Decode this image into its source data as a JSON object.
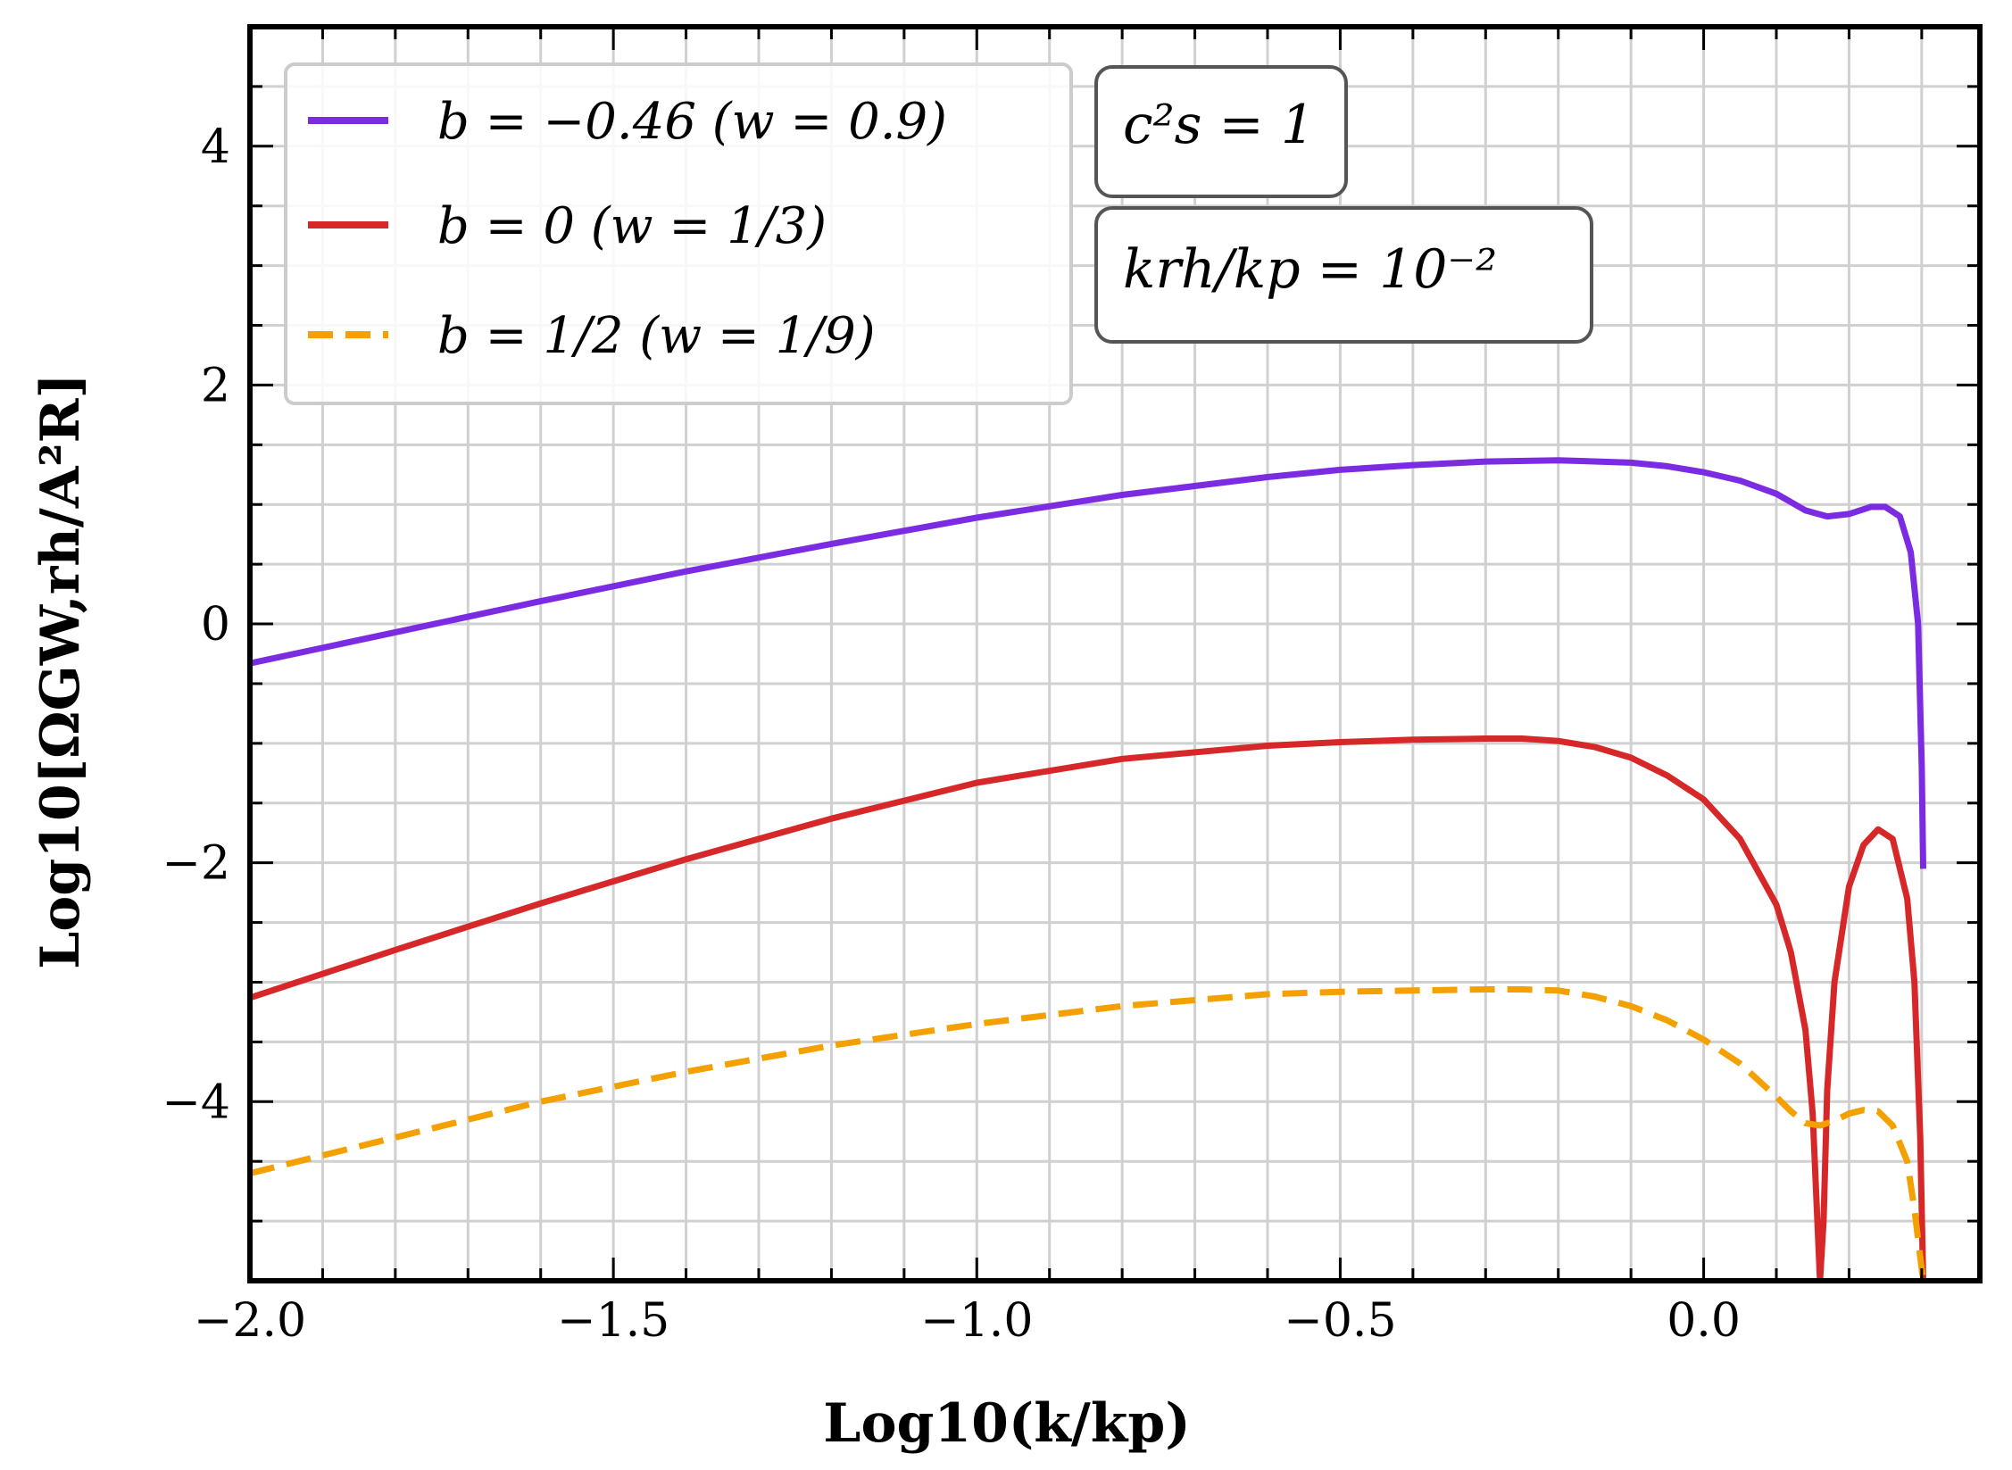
{
  "chart_data": {
    "type": "line",
    "xlabel": "Log10(k/kp)",
    "ylabel": "Log10[ΩGW,rh/A²R]",
    "xlim": [
      -2.0,
      0.38
    ],
    "ylim": [
      -5.5,
      5.0
    ],
    "x_ticks": [
      -2.0,
      -1.5,
      -1.0,
      -0.5,
      0.0
    ],
    "x_tick_labels": [
      "−2.0",
      "−1.5",
      "−1.0",
      "−0.5",
      "0.0"
    ],
    "y_ticks": [
      -4,
      -2,
      0,
      2,
      4
    ],
    "y_tick_labels": [
      "−4",
      "−2",
      "0",
      "2",
      "4"
    ],
    "grid": true,
    "legend_position": "upper-left",
    "annotations": [
      "c²s = 1",
      "krh/kp = 10⁻²"
    ],
    "series": [
      {
        "name": "b = −0.46 (w = 0.9)",
        "color": "#7b2be2",
        "dash": "solid",
        "x": [
          -2.0,
          -1.8,
          -1.6,
          -1.4,
          -1.2,
          -1.0,
          -0.8,
          -0.6,
          -0.5,
          -0.4,
          -0.3,
          -0.2,
          -0.1,
          -0.05,
          0.0,
          0.05,
          0.1,
          0.14,
          0.17,
          0.2,
          0.23,
          0.25,
          0.27,
          0.285,
          0.295,
          0.3,
          0.302
        ],
        "y": [
          -0.33,
          -0.07,
          0.19,
          0.44,
          0.67,
          0.89,
          1.08,
          1.23,
          1.29,
          1.33,
          1.36,
          1.37,
          1.35,
          1.32,
          1.27,
          1.2,
          1.09,
          0.95,
          0.9,
          0.92,
          0.98,
          0.98,
          0.9,
          0.6,
          0.0,
          -1.2,
          -2.05
        ]
      },
      {
        "name": "b = 0 (w = 1/3)",
        "color": "#d62828",
        "dash": "solid",
        "x": [
          -2.0,
          -1.8,
          -1.6,
          -1.4,
          -1.2,
          -1.0,
          -0.8,
          -0.6,
          -0.5,
          -0.4,
          -0.3,
          -0.25,
          -0.2,
          -0.15,
          -0.1,
          -0.05,
          0.0,
          0.05,
          0.1,
          0.12,
          0.14,
          0.15,
          0.16,
          0.165,
          0.17,
          0.18,
          0.2,
          0.22,
          0.24,
          0.26,
          0.28,
          0.29,
          0.298,
          0.302
        ],
        "y": [
          -3.13,
          -2.73,
          -2.34,
          -1.97,
          -1.63,
          -1.33,
          -1.13,
          -1.02,
          -0.99,
          -0.97,
          -0.96,
          -0.96,
          -0.98,
          -1.03,
          -1.12,
          -1.27,
          -1.47,
          -1.8,
          -2.35,
          -2.75,
          -3.4,
          -4.1,
          -5.5,
          -5.0,
          -3.9,
          -3.0,
          -2.2,
          -1.85,
          -1.72,
          -1.8,
          -2.3,
          -3.0,
          -4.3,
          -5.5
        ]
      },
      {
        "name": "b = 1/2 (w = 1/9)",
        "color": "#f4a000",
        "dash": "dashed",
        "x": [
          -2.0,
          -1.8,
          -1.6,
          -1.4,
          -1.2,
          -1.0,
          -0.8,
          -0.6,
          -0.5,
          -0.4,
          -0.3,
          -0.25,
          -0.2,
          -0.15,
          -0.1,
          -0.05,
          0.0,
          0.05,
          0.1,
          0.12,
          0.14,
          0.16,
          0.18,
          0.2,
          0.22,
          0.24,
          0.26,
          0.28,
          0.29,
          0.298,
          0.302
        ],
        "y": [
          -4.6,
          -4.3,
          -4.0,
          -3.75,
          -3.53,
          -3.35,
          -3.2,
          -3.1,
          -3.08,
          -3.07,
          -3.06,
          -3.06,
          -3.07,
          -3.12,
          -3.2,
          -3.32,
          -3.48,
          -3.68,
          -3.96,
          -4.08,
          -4.18,
          -4.2,
          -4.16,
          -4.1,
          -4.07,
          -4.08,
          -4.2,
          -4.5,
          -4.9,
          -5.3,
          -5.5
        ]
      }
    ]
  }
}
